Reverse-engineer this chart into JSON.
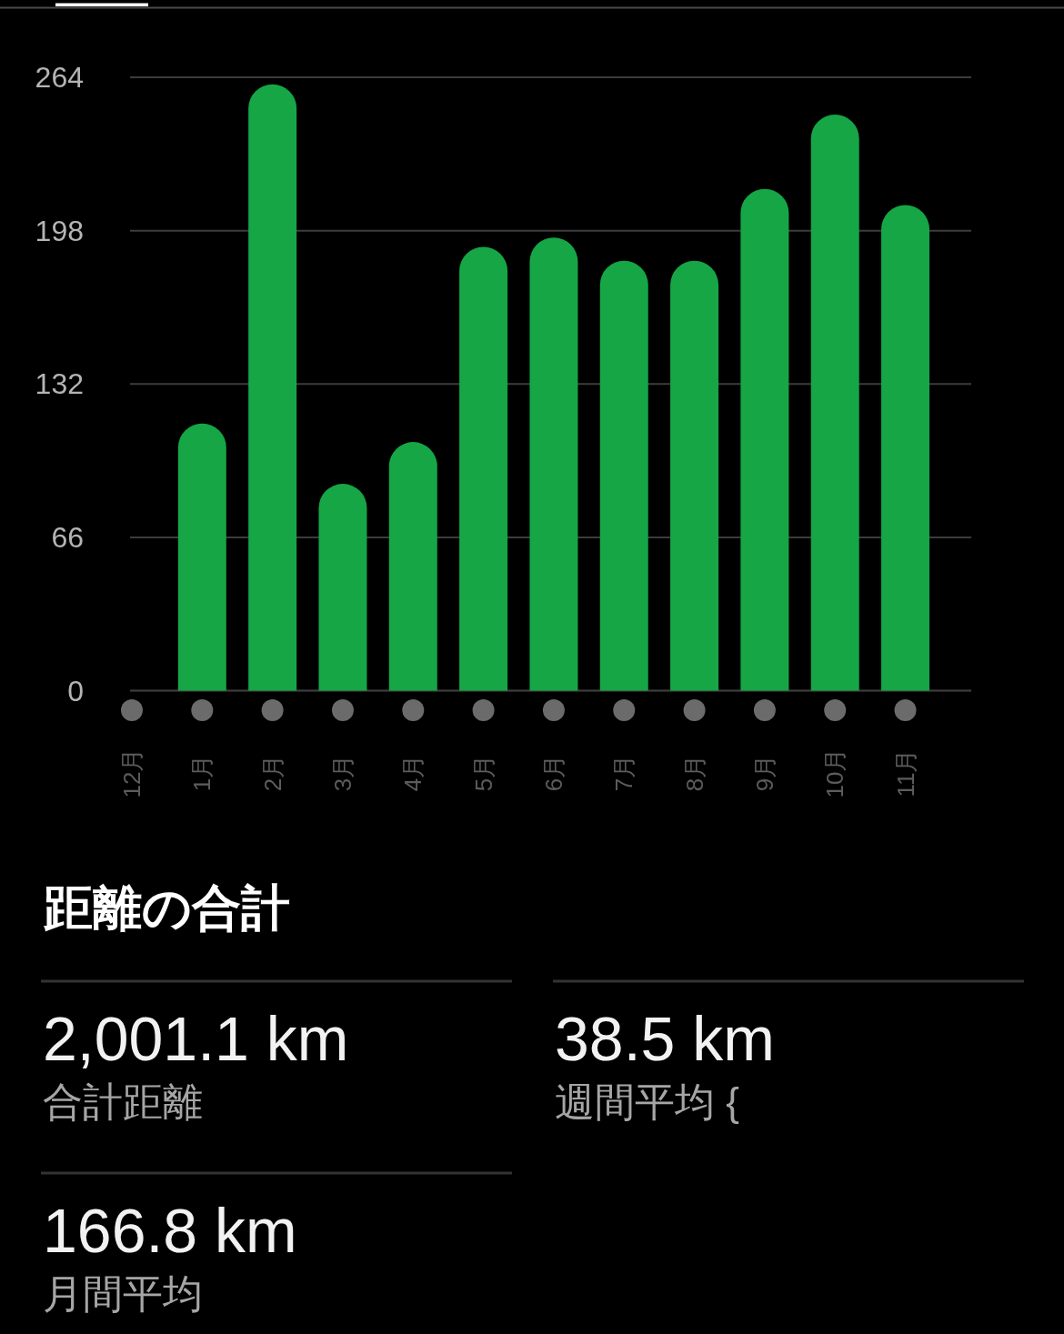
{
  "chart_data": [
    {
      "type": "bar",
      "categories": [
        "12月",
        "1月",
        "2月",
        "3月",
        "4月",
        "5月",
        "6月",
        "7月",
        "8月",
        "9月",
        "10月",
        "11月"
      ],
      "values": [
        0,
        115,
        261,
        89,
        107,
        191,
        195,
        185,
        185,
        216,
        248,
        209
      ],
      "color": "#16a646",
      "ylim": [
        0,
        264
      ],
      "yticks": [
        0,
        66,
        132,
        198,
        264
      ],
      "grid": "y"
    },
    {
      "type": "other",
      "title": "距離の合計",
      "annotations": [
        "2,001.1 km",
        "合計距離",
        "38.5 km",
        "週間平均 {",
        "166.8 km",
        "月間平均"
      ]
    }
  ]
}
